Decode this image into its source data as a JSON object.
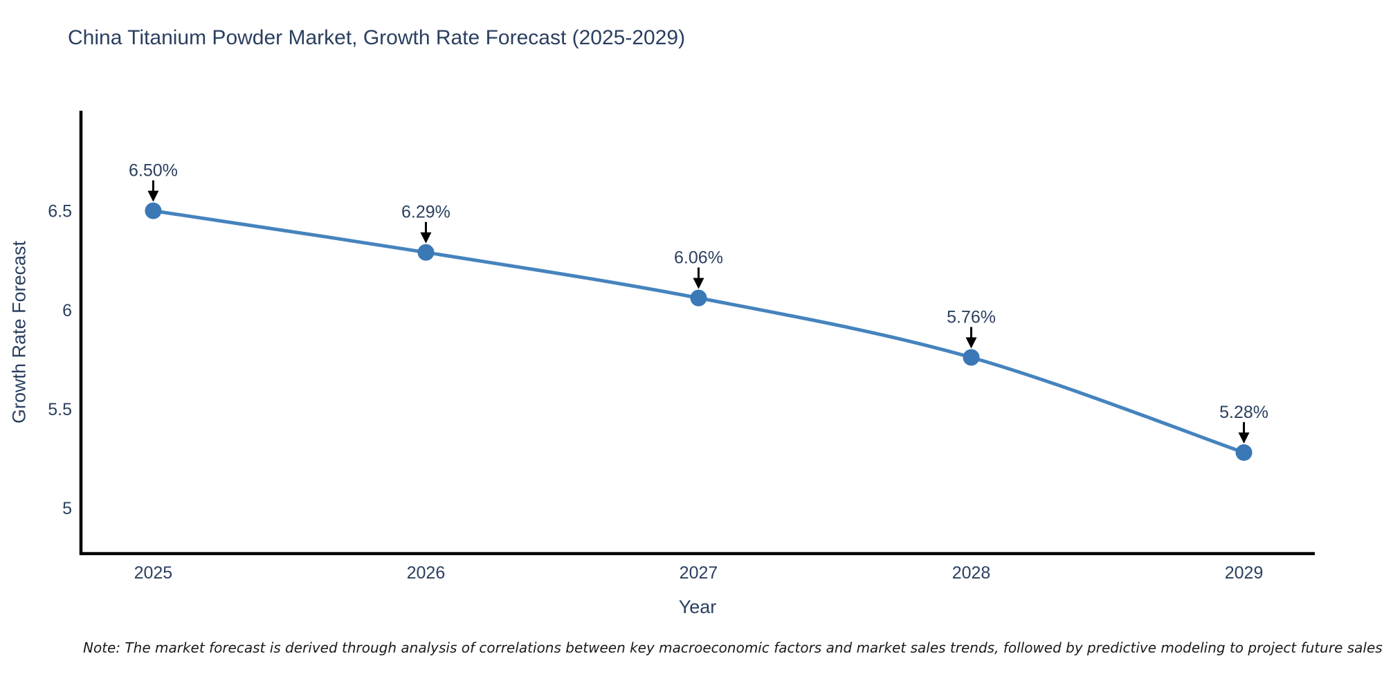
{
  "chart_data": {
    "type": "line",
    "title": "China Titanium Powder Market, Growth Rate Forecast (2025-2029)",
    "xlabel": "Year",
    "ylabel": "Growth Rate Forecast",
    "x": [
      2025,
      2026,
      2027,
      2028,
      2029
    ],
    "series": [
      {
        "name": "Growth Rate Forecast",
        "values": [
          6.5,
          6.29,
          6.06,
          5.76,
          5.28
        ]
      }
    ],
    "point_labels": [
      "6.50%",
      "6.29%",
      "6.06%",
      "5.76%",
      "5.28%"
    ],
    "xticks": [
      "2025",
      "2026",
      "2027",
      "2028",
      "2029"
    ],
    "yticks": [
      5,
      5.5,
      6,
      6.5
    ],
    "xlim": [
      2024.735,
      2029.26
    ],
    "ylim": [
      4.77,
      7.005
    ],
    "grid": false,
    "legend": "none",
    "line_shape": "spline",
    "colors": {
      "line": "#4583bd",
      "marker": "#3b78b6",
      "arrow": "#000000",
      "axis": "#000000",
      "text": "#2a3f5f",
      "note": "#1a1a1a",
      "background": "#ffffff"
    }
  },
  "note": {
    "text": "Note: The market forecast is derived through analysis of correlations between key macroeconomic factors and market sales trends, followed by predictive modeling to project future sales"
  }
}
